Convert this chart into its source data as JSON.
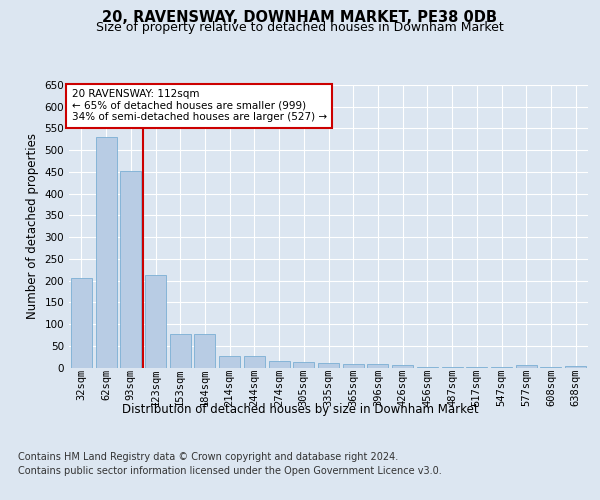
{
  "title_line1": "20, RAVENSWAY, DOWNHAM MARKET, PE38 0DB",
  "title_line2": "Size of property relative to detached houses in Downham Market",
  "xlabel": "Distribution of detached houses by size in Downham Market",
  "ylabel": "Number of detached properties",
  "footer_line1": "Contains HM Land Registry data © Crown copyright and database right 2024.",
  "footer_line2": "Contains public sector information licensed under the Open Government Licence v3.0.",
  "categories": [
    "32sqm",
    "62sqm",
    "93sqm",
    "123sqm",
    "153sqm",
    "184sqm",
    "214sqm",
    "244sqm",
    "274sqm",
    "305sqm",
    "335sqm",
    "365sqm",
    "396sqm",
    "426sqm",
    "456sqm",
    "487sqm",
    "517sqm",
    "547sqm",
    "577sqm",
    "608sqm",
    "638sqm"
  ],
  "values": [
    207,
    530,
    452,
    213,
    76,
    76,
    27,
    27,
    16,
    12,
    10,
    8,
    9,
    5,
    2,
    1,
    1,
    1,
    5,
    1,
    4
  ],
  "bar_color": "#b8cce4",
  "bar_edge_color": "#7bafd4",
  "annotation_text_line1": "20 RAVENSWAY: 112sqm",
  "annotation_text_line2": "← 65% of detached houses are smaller (999)",
  "annotation_text_line3": "34% of semi-detached houses are larger (527) →",
  "annotation_box_color": "#ffffff",
  "annotation_box_edge_color": "#cc0000",
  "annotation_text_color": "#000000",
  "vline_color": "#cc0000",
  "ylim": [
    0,
    650
  ],
  "yticks": [
    0,
    50,
    100,
    150,
    200,
    250,
    300,
    350,
    400,
    450,
    500,
    550,
    600,
    650
  ],
  "background_color": "#dce6f1",
  "plot_background_color": "#dce6f1",
  "grid_color": "#ffffff",
  "title_fontsize": 10.5,
  "subtitle_fontsize": 9,
  "tick_fontsize": 7.5,
  "ylabel_fontsize": 8.5,
  "xlabel_fontsize": 8.5,
  "annotation_fontsize": 7.5,
  "footer_fontsize": 7
}
